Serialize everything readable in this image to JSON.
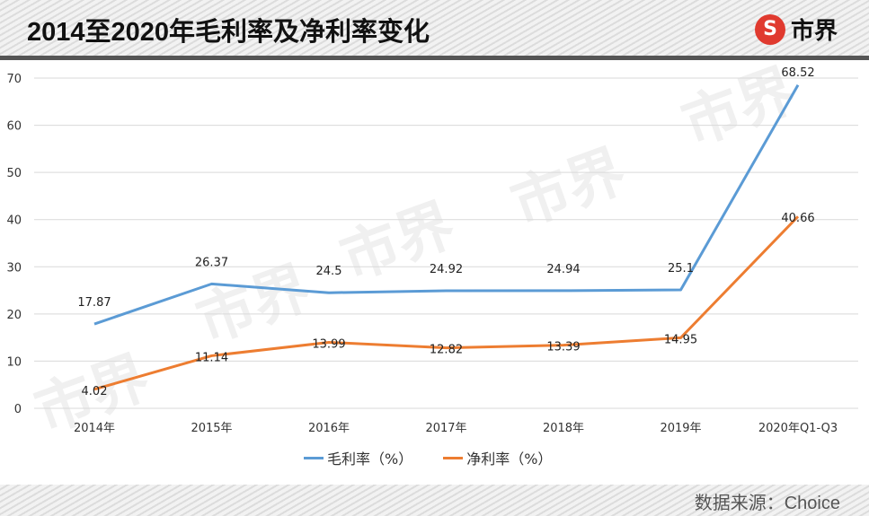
{
  "header": {
    "title": "2014至2020年毛利率及净利率变化",
    "logo_mark": "S",
    "logo_text": "市界"
  },
  "footer": {
    "source": "数据来源：Choice"
  },
  "watermark": "市界",
  "legend": {
    "items": [
      {
        "label": "毛利率（%）",
        "color": "#5b9bd5"
      },
      {
        "label": "净利率（%）",
        "color": "#ed7d31"
      }
    ]
  },
  "chart_data": {
    "type": "line",
    "title": "2014至2020年毛利率及净利率变化",
    "xlabel": "",
    "ylabel": "",
    "categories": [
      "2014年",
      "2015年",
      "2016年",
      "2017年",
      "2018年",
      "2019年",
      "2020年Q1-Q3"
    ],
    "series": [
      {
        "name": "毛利率（%）",
        "color": "#5b9bd5",
        "values": [
          17.87,
          26.37,
          24.5,
          24.92,
          24.94,
          25.1,
          68.52
        ],
        "labels": [
          "17.87",
          "26.37",
          "24.5",
          "24.92",
          "24.94",
          "25.1",
          "68.52"
        ]
      },
      {
        "name": "净利率（%）",
        "color": "#ed7d31",
        "values": [
          4.02,
          11.14,
          13.99,
          12.82,
          13.39,
          14.95,
          40.66
        ],
        "labels": [
          "4.02",
          "11.14",
          "13.99",
          "12.82",
          "13.39",
          "14.95",
          "40.66"
        ]
      }
    ],
    "yticks": [
      "0",
      "10",
      "20",
      "30",
      "40",
      "50",
      "60",
      "70"
    ],
    "ylim": [
      0,
      70
    ],
    "grid": true,
    "legend_position": "bottom",
    "source": "数据来源：Choice"
  }
}
